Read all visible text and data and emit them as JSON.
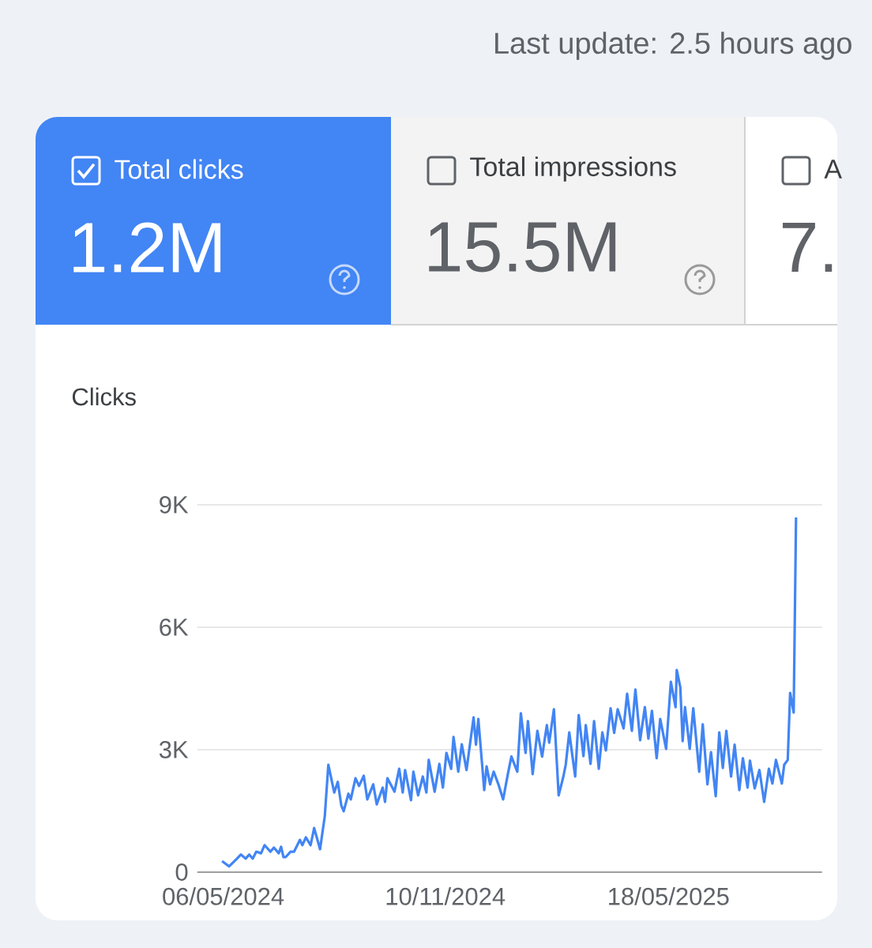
{
  "chart_data": {
    "type": "line",
    "ylabel": "Clicks",
    "annotations": [
      "Last update: 2.5 hours ago",
      "Total clicks",
      "1.2M",
      "Total impressions",
      "15.5M",
      "A",
      "7."
    ],
    "x": [
      "2024-05-05",
      "2024-05-11",
      "2024-05-17",
      "2024-05-21",
      "2024-05-25",
      "2024-05-28",
      "2024-05-31",
      "2024-06-03",
      "2024-06-07",
      "2024-06-10",
      "2024-06-15",
      "2024-06-18",
      "2024-06-22",
      "2024-06-24",
      "2024-06-26",
      "2024-06-28",
      "2024-07-02",
      "2024-07-05",
      "2024-07-10",
      "2024-07-12",
      "2024-07-15",
      "2024-07-19",
      "2024-07-22",
      "2024-07-27",
      "2024-07-31",
      "2024-08-03",
      "2024-08-08",
      "2024-08-11",
      "2024-08-14",
      "2024-08-16",
      "2024-08-20",
      "2024-08-22",
      "2024-08-26",
      "2024-08-29",
      "2024-09-02",
      "2024-09-05",
      "2024-09-10",
      "2024-09-13",
      "2024-09-18",
      "2024-09-20",
      "2024-09-22",
      "2024-09-28",
      "2024-10-02",
      "2024-10-05",
      "2024-10-07",
      "2024-10-12",
      "2024-10-14",
      "2024-10-18",
      "2024-10-22",
      "2024-10-25",
      "2024-10-27",
      "2024-11-01",
      "2024-11-05",
      "2024-11-08",
      "2024-11-11",
      "2024-11-15",
      "2024-11-17",
      "2024-11-21",
      "2024-11-24",
      "2024-11-28",
      "2024-12-04",
      "2024-12-06",
      "2024-12-08",
      "2024-12-13",
      "2024-12-15",
      "2024-12-18",
      "2024-12-21",
      "2024-12-25",
      "2024-12-29",
      "2025-01-02",
      "2025-01-05",
      "2025-01-10",
      "2025-01-13",
      "2025-01-17",
      "2025-01-19",
      "2025-01-23",
      "2025-01-27",
      "2025-01-31",
      "2025-02-04",
      "2025-02-06",
      "2025-02-10",
      "2025-02-14",
      "2025-02-18",
      "2025-02-20",
      "2025-02-23",
      "2025-02-28",
      "2025-03-03",
      "2025-03-07",
      "2025-03-09",
      "2025-03-13",
      "2025-03-16",
      "2025-03-20",
      "2025-03-23",
      "2025-03-26",
      "2025-03-30",
      "2025-04-02",
      "2025-04-05",
      "2025-04-10",
      "2025-04-13",
      "2025-04-17",
      "2025-04-20",
      "2025-04-24",
      "2025-04-28",
      "2025-05-01",
      "2025-05-04",
      "2025-05-08",
      "2025-05-11",
      "2025-05-16",
      "2025-05-20",
      "2025-05-24",
      "2025-05-25",
      "2025-05-28",
      "2025-05-30",
      "2025-06-01",
      "2025-06-05",
      "2025-06-08",
      "2025-06-13",
      "2025-06-16",
      "2025-06-20",
      "2025-06-23",
      "2025-06-27",
      "2025-06-30",
      "2025-07-03",
      "2025-07-06",
      "2025-07-10",
      "2025-07-13",
      "2025-07-17",
      "2025-07-20",
      "2025-07-24",
      "2025-07-26",
      "2025-07-30",
      "2025-08-03",
      "2025-08-07",
      "2025-08-11",
      "2025-08-14",
      "2025-08-17",
      "2025-08-22",
      "2025-08-24",
      "2025-08-27",
      "2025-08-29",
      "2025-09-01",
      "2025-09-03"
    ],
    "values": [
      270,
      140,
      310,
      430,
      330,
      430,
      330,
      500,
      460,
      660,
      500,
      600,
      460,
      620,
      370,
      370,
      500,
      500,
      790,
      660,
      850,
      660,
      1080,
      560,
      1370,
      2630,
      1950,
      2210,
      1630,
      1490,
      1920,
      1780,
      2300,
      2110,
      2360,
      1780,
      2150,
      1660,
      2070,
      1720,
      2300,
      1970,
      2530,
      1950,
      2500,
      1760,
      2460,
      1880,
      2340,
      1950,
      2750,
      1970,
      2650,
      2070,
      2920,
      2530,
      3310,
      2460,
      3130,
      2500,
      3790,
      3120,
      3750,
      2010,
      2590,
      2150,
      2460,
      2150,
      1780,
      2400,
      2830,
      2460,
      3890,
      2920,
      3700,
      2400,
      3460,
      2830,
      3600,
      3170,
      3990,
      1880,
      2340,
      2630,
      3420,
      2340,
      3850,
      2840,
      3600,
      2650,
      3700,
      2530,
      3420,
      2980,
      4010,
      3410,
      3990,
      3520,
      4370,
      3460,
      4470,
      3230,
      4040,
      3270,
      3950,
      2790,
      3750,
      3020,
      4660,
      4040,
      4950,
      4530,
      3210,
      4040,
      3020,
      4010,
      2460,
      3620,
      2150,
      2940,
      1860,
      3420,
      2550,
      3460,
      2340,
      3120,
      2010,
      2790,
      2070,
      2730,
      2050,
      2500,
      1720,
      2530,
      2170,
      2750,
      2170,
      2630,
      2750,
      4390,
      3910,
      8690
    ],
    "color": "#4285f4",
    "xlim": [
      "2024-04-14",
      "2025-09-25"
    ],
    "xticks": [
      {
        "value": "2024-05-06",
        "label": "06/05/2024"
      },
      {
        "value": "2024-11-10",
        "label": "10/11/2024"
      },
      {
        "value": "2025-05-18",
        "label": "18/05/2025"
      }
    ],
    "ylim": [
      0,
      9000
    ],
    "yticks": [
      0,
      {
        "value": 3000,
        "label": "3K"
      },
      {
        "value": 6000,
        "label": "6K"
      },
      {
        "value": 9000,
        "label": "9K"
      }
    ],
    "grid": "y"
  }
}
